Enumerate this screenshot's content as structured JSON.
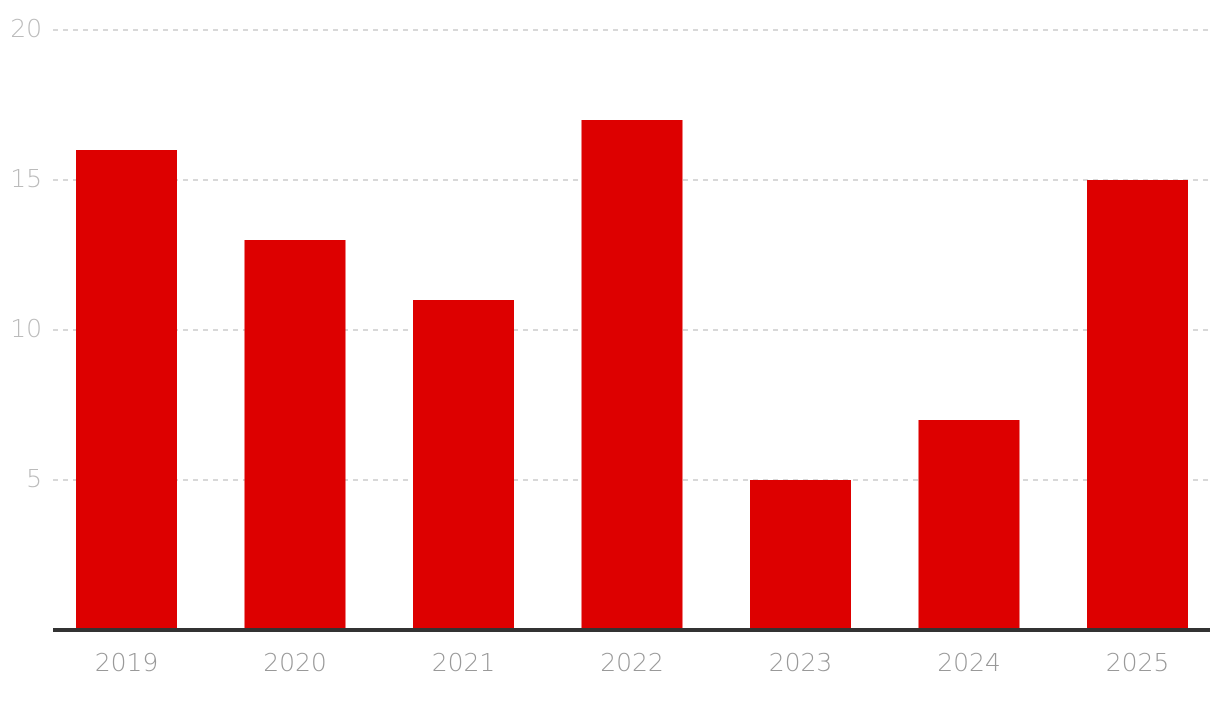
{
  "chart_data": {
    "type": "bar",
    "categories": [
      "2019",
      "2020",
      "2021",
      "2022",
      "2023",
      "2024",
      "2025"
    ],
    "values": [
      16,
      13,
      11,
      17,
      5,
      7,
      15
    ],
    "color": "#dd0000",
    "ylim": [
      0,
      20
    ],
    "yticks": [
      5,
      10,
      15,
      20
    ],
    "grid": true
  }
}
